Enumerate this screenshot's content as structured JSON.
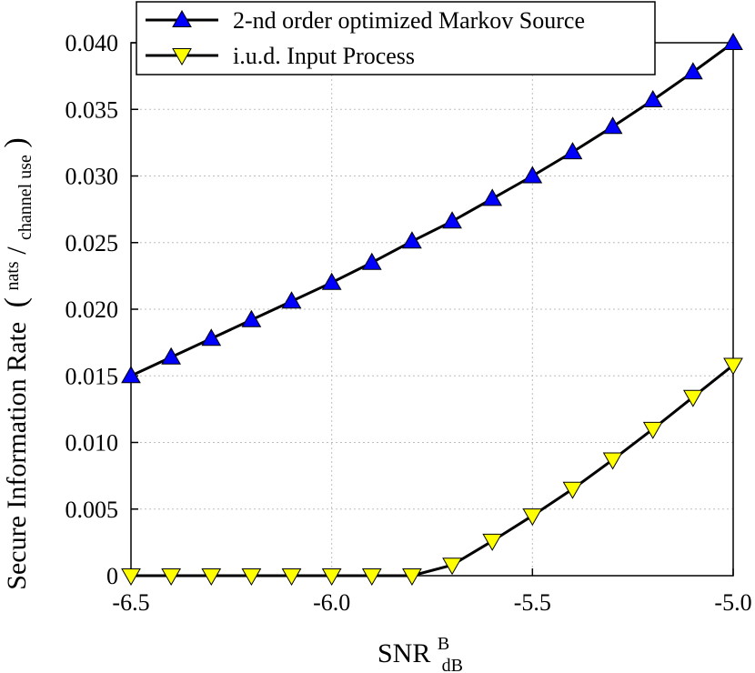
{
  "chart_data": {
    "type": "line",
    "title": "",
    "xlabel": {
      "main": "SNR",
      "sup": "B",
      "sub": "dB"
    },
    "ylabel": {
      "main": "Secure Information Rate",
      "unit_num": "nats",
      "unit_den": "channel use"
    },
    "xlim": [
      -6.5,
      -5.0
    ],
    "ylim": [
      0,
      0.04
    ],
    "xticks": [
      -6.5,
      -6.0,
      -5.5,
      -5.0
    ],
    "xtick_labels": [
      "-6.5",
      "-6.0",
      "-5.5",
      "-5.0"
    ],
    "yticks": [
      0,
      0.005,
      0.01,
      0.015,
      0.02,
      0.025,
      0.03,
      0.035,
      0.04
    ],
    "ytick_labels": [
      "0",
      "0.005",
      "0.010",
      "0.015",
      "0.020",
      "0.025",
      "0.030",
      "0.035",
      "0.040"
    ],
    "grid": true,
    "legend_position": "top-left",
    "x": [
      -6.5,
      -6.4,
      -6.3,
      -6.2,
      -6.1,
      -6.0,
      -5.9,
      -5.8,
      -5.7,
      -5.6,
      -5.5,
      -5.4,
      -5.3,
      -5.2,
      -5.1,
      -5.0
    ],
    "series": [
      {
        "name": "2-nd order optimized Markov Source",
        "marker": "triangle-up",
        "color": "#0000ff",
        "values": [
          0.015,
          0.0164,
          0.0178,
          0.0192,
          0.0206,
          0.022,
          0.0235,
          0.0251,
          0.0266,
          0.0283,
          0.03,
          0.0318,
          0.0337,
          0.0357,
          0.0378,
          0.04
        ]
      },
      {
        "name": "i.u.d. Input Process",
        "marker": "triangle-down",
        "color": "#ffff00",
        "values": [
          0,
          0,
          0,
          0,
          0,
          0,
          0,
          0,
          0.0008,
          0.0026,
          0.0045,
          0.0065,
          0.0087,
          0.011,
          0.0134,
          0.0158
        ]
      }
    ]
  }
}
